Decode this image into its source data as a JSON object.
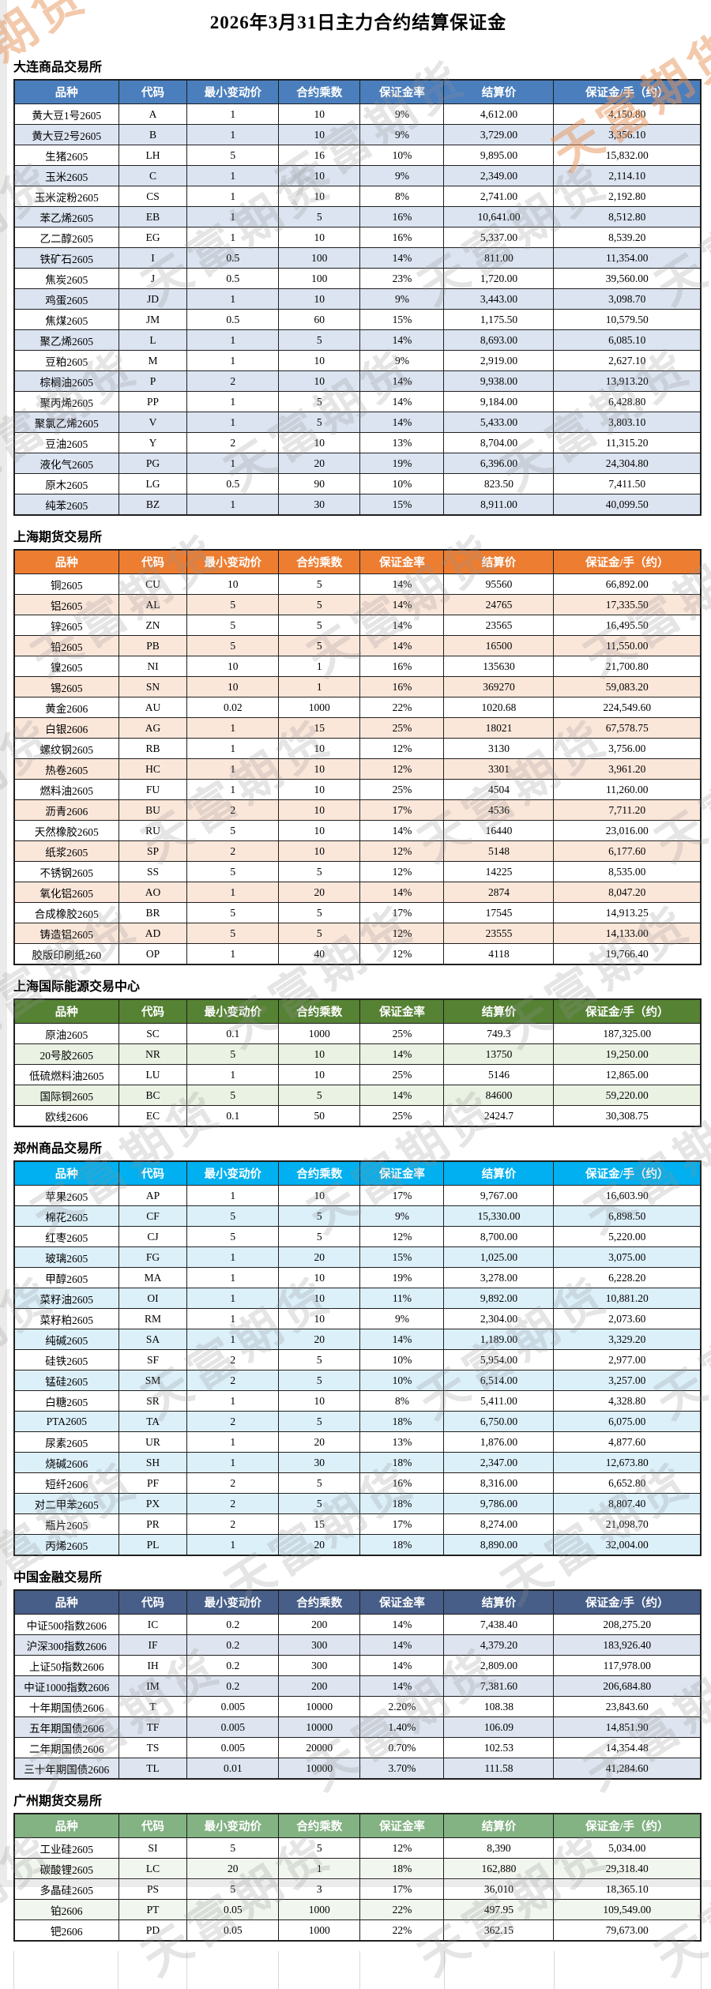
{
  "page": {
    "title": "2026年3月31日主力合约结算保证金",
    "watermark_text": "天富期货",
    "watermark_gray_color": "#919191",
    "watermark_accent_color": "#E8945A"
  },
  "columns": [
    {
      "key": "variety",
      "label": "品种"
    },
    {
      "key": "code",
      "label": "代码"
    },
    {
      "key": "min_tick",
      "label": "最小变动价"
    },
    {
      "key": "multiplier",
      "label": "合约乘数"
    },
    {
      "key": "margin_rate",
      "label": "保证金率"
    },
    {
      "key": "settlement_price",
      "label": "结算价"
    },
    {
      "key": "margin_per_lot",
      "label": "保证金/手（约）"
    }
  ],
  "sections": [
    {
      "name": "大连商品交易所",
      "header_bg": "#4A7EBC",
      "stripe_bg": "#DCE4F1",
      "rows": [
        [
          "黄大豆1号2605",
          "A",
          "1",
          "10",
          "9%",
          "4,612.00",
          "4,150.80"
        ],
        [
          "黄大豆2号2605",
          "B",
          "1",
          "10",
          "9%",
          "3,729.00",
          "3,356.10"
        ],
        [
          "生猪2605",
          "LH",
          "5",
          "16",
          "10%",
          "9,895.00",
          "15,832.00"
        ],
        [
          "玉米2605",
          "C",
          "1",
          "10",
          "9%",
          "2,349.00",
          "2,114.10"
        ],
        [
          "玉米淀粉2605",
          "CS",
          "1",
          "10",
          "8%",
          "2,741.00",
          "2,192.80"
        ],
        [
          "苯乙烯2605",
          "EB",
          "1",
          "5",
          "16%",
          "10,641.00",
          "8,512.80"
        ],
        [
          "乙二醇2605",
          "EG",
          "1",
          "10",
          "16%",
          "5,337.00",
          "8,539.20"
        ],
        [
          "铁矿石2605",
          "I",
          "0.5",
          "100",
          "14%",
          "811.00",
          "11,354.00"
        ],
        [
          "焦炭2605",
          "J",
          "0.5",
          "100",
          "23%",
          "1,720.00",
          "39,560.00"
        ],
        [
          "鸡蛋2605",
          "JD",
          "1",
          "10",
          "9%",
          "3,443.00",
          "3,098.70"
        ],
        [
          "焦煤2605",
          "JM",
          "0.5",
          "60",
          "15%",
          "1,175.50",
          "10,579.50"
        ],
        [
          "聚乙烯2605",
          "L",
          "1",
          "5",
          "14%",
          "8,693.00",
          "6,085.10"
        ],
        [
          "豆粕2605",
          "M",
          "1",
          "10",
          "9%",
          "2,919.00",
          "2,627.10"
        ],
        [
          "棕榈油2605",
          "P",
          "2",
          "10",
          "14%",
          "9,938.00",
          "13,913.20"
        ],
        [
          "聚丙烯2605",
          "PP",
          "1",
          "5",
          "14%",
          "9,184.00",
          "6,428.80"
        ],
        [
          "聚氯乙烯2605",
          "V",
          "1",
          "5",
          "14%",
          "5,433.00",
          "3,803.10"
        ],
        [
          "豆油2605",
          "Y",
          "2",
          "10",
          "13%",
          "8,704.00",
          "11,315.20"
        ],
        [
          "液化气2605",
          "PG",
          "1",
          "20",
          "19%",
          "6,396.00",
          "24,304.80"
        ],
        [
          "原木2605",
          "LG",
          "0.5",
          "90",
          "10%",
          "823.50",
          "7,411.50"
        ],
        [
          "纯苯2605",
          "BZ",
          "1",
          "30",
          "15%",
          "8,911.00",
          "40,099.50"
        ]
      ]
    },
    {
      "name": "上海期货交易所",
      "header_bg": "#ED7D31",
      "stripe_bg": "#FBE7DA",
      "rows": [
        [
          "铜2605",
          "CU",
          "10",
          "5",
          "14%",
          "95560",
          "66,892.00"
        ],
        [
          "铝2605",
          "AL",
          "5",
          "5",
          "14%",
          "24765",
          "17,335.50"
        ],
        [
          "锌2605",
          "ZN",
          "5",
          "5",
          "14%",
          "23565",
          "16,495.50"
        ],
        [
          "铅2605",
          "PB",
          "5",
          "5",
          "14%",
          "16500",
          "11,550.00"
        ],
        [
          "镍2605",
          "NI",
          "10",
          "1",
          "16%",
          "135630",
          "21,700.80"
        ],
        [
          "锡2605",
          "SN",
          "10",
          "1",
          "16%",
          "369270",
          "59,083.20"
        ],
        [
          "黄金2606",
          "AU",
          "0.02",
          "1000",
          "22%",
          "1020.68",
          "224,549.60"
        ],
        [
          "白银2606",
          "AG",
          "1",
          "15",
          "25%",
          "18021",
          "67,578.75"
        ],
        [
          "螺纹钢2605",
          "RB",
          "1",
          "10",
          "12%",
          "3130",
          "3,756.00"
        ],
        [
          "热卷2605",
          "HC",
          "1",
          "10",
          "12%",
          "3301",
          "3,961.20"
        ],
        [
          "燃料油2605",
          "FU",
          "1",
          "10",
          "25%",
          "4504",
          "11,260.00"
        ],
        [
          "沥青2606",
          "BU",
          "2",
          "10",
          "17%",
          "4536",
          "7,711.20"
        ],
        [
          "天然橡胶2605",
          "RU",
          "5",
          "10",
          "14%",
          "16440",
          "23,016.00"
        ],
        [
          "纸浆2605",
          "SP",
          "2",
          "10",
          "12%",
          "5148",
          "6,177.60"
        ],
        [
          "不锈钢2605",
          "SS",
          "5",
          "5",
          "12%",
          "14225",
          "8,535.00"
        ],
        [
          "氧化铝2605",
          "AO",
          "1",
          "20",
          "14%",
          "2874",
          "8,047.20"
        ],
        [
          "合成橡胶2605",
          "BR",
          "5",
          "5",
          "17%",
          "17545",
          "14,913.25"
        ],
        [
          "铸造铝2605",
          "AD",
          "5",
          "5",
          "12%",
          "23555",
          "14,133.00"
        ],
        [
          "胶版印刷纸260",
          "OP",
          "1",
          "40",
          "12%",
          "4118",
          "19,766.40"
        ]
      ]
    },
    {
      "name": "上海国际能源交易中心",
      "header_bg": "#568234",
      "stripe_bg": "#EAF2E3",
      "rows": [
        [
          "原油2605",
          "SC",
          "0.1",
          "1000",
          "25%",
          "749.3",
          "187,325.00"
        ],
        [
          "20号胶2605",
          "NR",
          "5",
          "10",
          "14%",
          "13750",
          "19,250.00"
        ],
        [
          "低硫燃料油2605",
          "LU",
          "1",
          "10",
          "25%",
          "5146",
          "12,865.00"
        ],
        [
          "国际铜2605",
          "BC",
          "5",
          "5",
          "14%",
          "84600",
          "59,220.00"
        ],
        [
          "欧线2606",
          "EC",
          "0.1",
          "50",
          "25%",
          "2424.7",
          "30,308.75"
        ]
      ]
    },
    {
      "name": "郑州商品交易所",
      "header_bg": "#00B0F0",
      "stripe_bg": "#DCF0FA",
      "rows": [
        [
          "苹果2605",
          "AP",
          "1",
          "10",
          "17%",
          "9,767.00",
          "16,603.90"
        ],
        [
          "棉花2605",
          "CF",
          "5",
          "5",
          "9%",
          "15,330.00",
          "6,898.50"
        ],
        [
          "红枣2605",
          "CJ",
          "5",
          "5",
          "12%",
          "8,700.00",
          "5,220.00"
        ],
        [
          "玻璃2605",
          "FG",
          "1",
          "20",
          "15%",
          "1,025.00",
          "3,075.00"
        ],
        [
          "甲醇2605",
          "MA",
          "1",
          "10",
          "19%",
          "3,278.00",
          "6,228.20"
        ],
        [
          "菜籽油2605",
          "OI",
          "1",
          "10",
          "11%",
          "9,892.00",
          "10,881.20"
        ],
        [
          "菜籽粕2605",
          "RM",
          "1",
          "10",
          "9%",
          "2,304.00",
          "2,073.60"
        ],
        [
          "纯碱2605",
          "SA",
          "1",
          "20",
          "14%",
          "1,189.00",
          "3,329.20"
        ],
        [
          "硅铁2605",
          "SF",
          "2",
          "5",
          "10%",
          "5,954.00",
          "2,977.00"
        ],
        [
          "锰硅2605",
          "SM",
          "2",
          "5",
          "10%",
          "6,514.00",
          "3,257.00"
        ],
        [
          "白糖2605",
          "SR",
          "1",
          "10",
          "8%",
          "5,411.00",
          "4,328.80"
        ],
        [
          "PTA2605",
          "TA",
          "2",
          "5",
          "18%",
          "6,750.00",
          "6,075.00"
        ],
        [
          "尿素2605",
          "UR",
          "1",
          "20",
          "13%",
          "1,876.00",
          "4,877.60"
        ],
        [
          "烧碱2606",
          "SH",
          "1",
          "30",
          "18%",
          "2,347.00",
          "12,673.80"
        ],
        [
          "短纤2606",
          "PF",
          "2",
          "5",
          "16%",
          "8,316.00",
          "6,652.80"
        ],
        [
          "对二甲苯2605",
          "PX",
          "2",
          "5",
          "18%",
          "9,786.00",
          "8,807.40"
        ],
        [
          "瓶片2605",
          "PR",
          "2",
          "15",
          "17%",
          "8,274.00",
          "21,098.70"
        ],
        [
          "丙烯2605",
          "PL",
          "1",
          "20",
          "18%",
          "8,890.00",
          "32,004.00"
        ]
      ]
    },
    {
      "name": "中国金融交易所",
      "header_bg": "#465E88",
      "stripe_bg": "#DEE5F0",
      "rows": [
        [
          "中证500指数2606",
          "IC",
          "0.2",
          "200",
          "14%",
          "7,438.40",
          "208,275.20"
        ],
        [
          "沪深300指数2606",
          "IF",
          "0.2",
          "300",
          "14%",
          "4,379.20",
          "183,926.40"
        ],
        [
          "上证50指数2606",
          "IH",
          "0.2",
          "300",
          "14%",
          "2,809.00",
          "117,978.00"
        ],
        [
          "中证1000指数2606",
          "IM",
          "0.2",
          "200",
          "14%",
          "7,381.60",
          "206,684.80"
        ],
        [
          "十年期国债2606",
          "T",
          "0.005",
          "10000",
          "2.20%",
          "108.38",
          "23,843.60"
        ],
        [
          "五年期国债2606",
          "TF",
          "0.005",
          "10000",
          "1.40%",
          "106.09",
          "14,851.90"
        ],
        [
          "二年期国债2606",
          "TS",
          "0.005",
          "20000",
          "0.70%",
          "102.53",
          "14,354.48"
        ],
        [
          "三十年期国债2606",
          "TL",
          "0.01",
          "10000",
          "3.70%",
          "111.58",
          "41,284.60"
        ]
      ]
    },
    {
      "name": "广州期货交易所",
      "header_bg": "#83B283",
      "stripe_bg": "#F1F6EE",
      "rows": [
        [
          "工业硅2605",
          "SI",
          "5",
          "5",
          "12%",
          "8,390",
          "5,034.00"
        ],
        [
          "碳酸锂2605",
          "LC",
          "20",
          "1",
          "18%",
          "162,880",
          "29,318.40"
        ],
        [
          "多晶硅2605",
          "PS",
          "5",
          "3",
          "17%",
          "36,010",
          "18,365.10"
        ],
        [
          "铂2606",
          "PT",
          "0.05",
          "1000",
          "22%",
          "497.95",
          "109,549.00"
        ],
        [
          "钯2606",
          "PD",
          "0.05",
          "1000",
          "22%",
          "362.15",
          "79,673.00"
        ]
      ]
    }
  ]
}
